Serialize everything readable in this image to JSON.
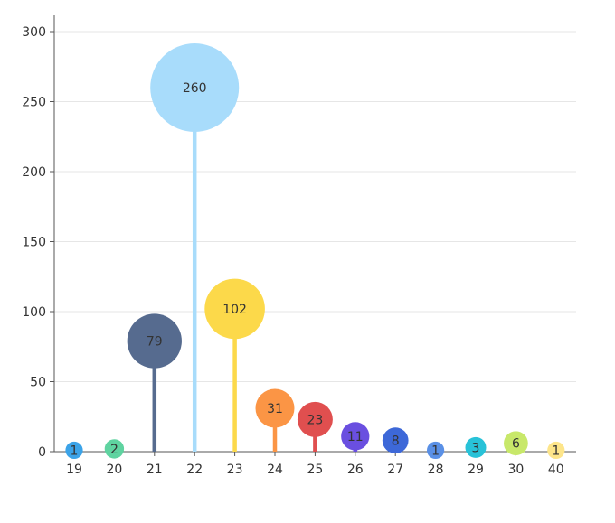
{
  "chart_data": {
    "type": "lollipop",
    "categories": [
      "19",
      "20",
      "21",
      "22",
      "23",
      "24",
      "25",
      "26",
      "27",
      "28",
      "29",
      "30",
      "40"
    ],
    "series": [
      {
        "values": [
          1,
          2,
          79,
          260,
          102,
          31,
          23,
          11,
          8,
          1,
          3,
          6,
          1
        ],
        "data_labels": [
          "1",
          "2",
          "79",
          "260",
          "102",
          "31",
          "23",
          "11",
          "8",
          "1",
          "3",
          "6",
          "1"
        ]
      }
    ],
    "colors": [
      "#3ba3e8",
      "#5fd3a0",
      "#566b8f",
      "#a8dcfb",
      "#fcd94a",
      "#fb9545",
      "#e04f4f",
      "#6a4fe0",
      "#3d68d8",
      "#5a90e6",
      "#28c2d8",
      "#c8e86a",
      "#fde58a"
    ],
    "yticks": [
      0,
      50,
      100,
      150,
      200,
      250,
      300
    ],
    "ytick_labels": [
      "0",
      "50",
      "100",
      "150",
      "200",
      "250",
      "300"
    ],
    "ylim": [
      0,
      300
    ],
    "grid": true,
    "bubble_size_encodes_value": true,
    "title": "",
    "xlabel": "",
    "ylabel": ""
  }
}
